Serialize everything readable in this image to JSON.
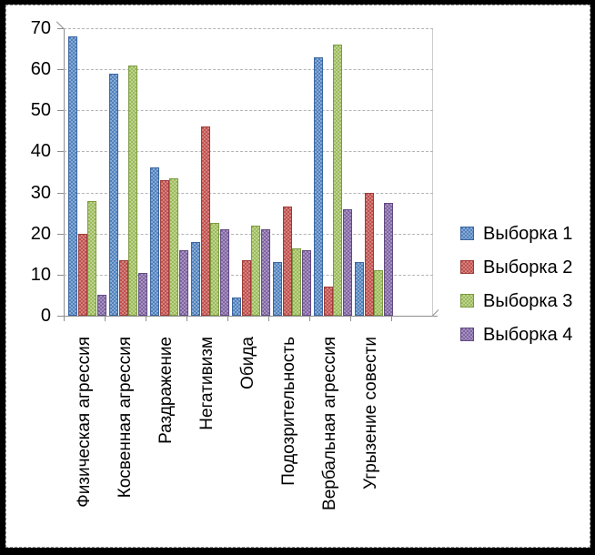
{
  "chart_data": {
    "type": "bar",
    "title": "",
    "xlabel": "",
    "ylabel": "",
    "grid": true,
    "legend_position": "right",
    "ylim": [
      0,
      70
    ],
    "yticks": [
      0,
      10,
      20,
      30,
      40,
      50,
      60,
      70
    ],
    "categories": [
      "Физическая агрессия",
      "Косвенная агрессия",
      "Раздражение",
      "Негативизм",
      "Обида",
      "Подозрительность",
      "Вербальная агрессия",
      "Угрызение совести"
    ],
    "series": [
      {
        "name": "Выборка 1",
        "color": "#4f81bd",
        "color_light": "#88aad4",
        "border": "#3b66a0",
        "values": [
          68,
          59,
          36,
          18,
          4.5,
          13,
          63,
          13
        ]
      },
      {
        "name": "Выборка 2",
        "color": "#c0504d",
        "color_light": "#d3827f",
        "border": "#9d3c39",
        "values": [
          20,
          13.5,
          33,
          46,
          13.5,
          26.5,
          7,
          30
        ]
      },
      {
        "name": "Выборка 3",
        "color": "#9bbb59",
        "color_light": "#bed391",
        "border": "#7c9a40",
        "values": [
          28,
          61,
          33.5,
          22.5,
          22,
          16.5,
          66,
          11
        ]
      },
      {
        "name": "Выборка 4",
        "color": "#8064a2",
        "color_light": "#a592bf",
        "border": "#624b82",
        "values": [
          5,
          10.5,
          16,
          21,
          21,
          16,
          26,
          27.5
        ]
      }
    ]
  },
  "colors": {
    "background": "#ffffff",
    "frame_border": "#000000",
    "selection_border": "#8f8f8f",
    "gridline": "#b4b4b4",
    "axis": "#8e8e8e",
    "text": "#000000"
  }
}
